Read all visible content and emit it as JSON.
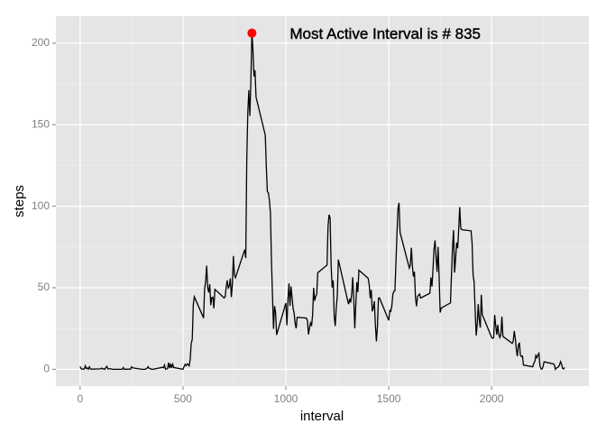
{
  "chart_data": {
    "type": "line",
    "xlabel": "interval",
    "ylabel": "steps",
    "annotation": "Most Active Interval is # 835",
    "highlight": {
      "x": 835,
      "y": 206.17,
      "color": "#ff0000"
    },
    "color": "#000000",
    "x": [
      0,
      5,
      10,
      15,
      20,
      25,
      30,
      35,
      40,
      45,
      50,
      55,
      100,
      105,
      110,
      115,
      120,
      125,
      130,
      135,
      140,
      145,
      150,
      155,
      200,
      205,
      210,
      215,
      220,
      225,
      230,
      235,
      240,
      245,
      250,
      255,
      300,
      305,
      310,
      315,
      320,
      325,
      330,
      335,
      340,
      345,
      350,
      355,
      400,
      405,
      410,
      415,
      420,
      425,
      430,
      435,
      440,
      445,
      450,
      455,
      500,
      505,
      510,
      515,
      520,
      525,
      530,
      535,
      540,
      545,
      550,
      555,
      600,
      605,
      610,
      615,
      620,
      625,
      630,
      635,
      640,
      645,
      650,
      655,
      700,
      705,
      710,
      715,
      720,
      725,
      730,
      735,
      740,
      745,
      750,
      755,
      800,
      805,
      810,
      815,
      820,
      825,
      830,
      835,
      840,
      845,
      850,
      855,
      900,
      905,
      910,
      915,
      920,
      925,
      930,
      935,
      940,
      945,
      950,
      955,
      1000,
      1005,
      1010,
      1015,
      1020,
      1025,
      1030,
      1035,
      1040,
      1045,
      1050,
      1055,
      1100,
      1105,
      1110,
      1115,
      1120,
      1125,
      1130,
      1135,
      1140,
      1145,
      1150,
      1155,
      1200,
      1205,
      1210,
      1215,
      1220,
      1225,
      1230,
      1235,
      1240,
      1245,
      1250,
      1255,
      1300,
      1305,
      1310,
      1315,
      1320,
      1325,
      1330,
      1335,
      1340,
      1345,
      1350,
      1355,
      1400,
      1405,
      1410,
      1415,
      1420,
      1425,
      1430,
      1435,
      1440,
      1445,
      1450,
      1455,
      1500,
      1505,
      1510,
      1515,
      1520,
      1525,
      1530,
      1535,
      1540,
      1545,
      1550,
      1555,
      1600,
      1605,
      1610,
      1615,
      1620,
      1625,
      1630,
      1635,
      1640,
      1645,
      1650,
      1655,
      1700,
      1705,
      1710,
      1715,
      1720,
      1725,
      1730,
      1735,
      1740,
      1745,
      1750,
      1755,
      1800,
      1805,
      1810,
      1815,
      1820,
      1825,
      1830,
      1835,
      1840,
      1845,
      1850,
      1855,
      1900,
      1905,
      1910,
      1915,
      1920,
      1925,
      1930,
      1935,
      1940,
      1945,
      1950,
      1955,
      2000,
      2005,
      2010,
      2015,
      2020,
      2025,
      2030,
      2035,
      2040,
      2045,
      2050,
      2055,
      2100,
      2105,
      2110,
      2115,
      2120,
      2125,
      2130,
      2135,
      2140,
      2145,
      2150,
      2155,
      2200,
      2205,
      2210,
      2215,
      2220,
      2225,
      2230,
      2235,
      2240,
      2245,
      2250,
      2255,
      2300,
      2305,
      2310,
      2315,
      2320,
      2325,
      2330,
      2335,
      2340,
      2345,
      2350,
      2355
    ],
    "values": [
      1.7,
      0.3,
      0.1,
      0.2,
      0.1,
      2.1,
      0.5,
      0.9,
      0,
      1.5,
      0.3,
      0.1,
      0.3,
      0.7,
      0.2,
      0.3,
      0,
      1.1,
      1.8,
      0.2,
      0.2,
      0.4,
      0.3,
      0,
      0,
      0,
      1.1,
      0,
      0,
      0.1,
      0,
      0.2,
      0,
      0,
      1.5,
      0.9,
      0,
      0,
      0,
      0,
      0.2,
      0.6,
      1.6,
      0.6,
      0.5,
      0.1,
      0,
      0,
      1.2,
      0.9,
      2.6,
      0,
      0.3,
      0.4,
      4.1,
      0.7,
      3.5,
      0.8,
      3.1,
      1.1,
      0,
      1.6,
      3.0,
      2.2,
      3.3,
      3.0,
      2.1,
      6.1,
      16.0,
      18.3,
      39.5,
      44.5,
      31.5,
      49.3,
      53.8,
      63.5,
      50.0,
      47.1,
      52.2,
      39.3,
      44.0,
      44.2,
      37.4,
      49.0,
      43.8,
      44.4,
      50.5,
      54.5,
      49.9,
      50.98,
      55.7,
      44.3,
      52.3,
      69.5,
      57.8,
      56.2,
      73.4,
      68.2,
      129.4,
      157.5,
      171.2,
      155.4,
      177.3,
      206.17,
      195.9,
      179.6,
      183.4,
      167.0,
      143.5,
      124.0,
      109.1,
      108.1,
      103.7,
      95.97,
      66.2,
      45.2,
      24.8,
      38.8,
      34.98,
      21.1,
      40.6,
      26.98,
      42.4,
      52.7,
      38.9,
      50.8,
      44.3,
      37.4,
      34.7,
      28.3,
      25.1,
      31.9,
      31.4,
      29.7,
      21.3,
      25.5,
      28.4,
      26.5,
      33.4,
      50.0,
      42.0,
      44.6,
      46.0,
      59.2,
      63.9,
      87.7,
      94.8,
      92.8,
      63.4,
      50.2,
      54.5,
      32.4,
      26.5,
      37.7,
      45.1,
      67.3,
      42.3,
      39.9,
      43.3,
      40.98,
      46.2,
      56.4,
      42.8,
      25.1,
      39.97,
      53.5,
      47.3,
      60.8,
      55.8,
      51.96,
      43.6,
      48.7,
      35.5,
      37.5,
      41.8,
      27.5,
      17.1,
      26.1,
      43.6,
      43.8,
      30.0,
      36.1,
      35.5,
      38.8,
      45.96,
      47.8,
      48.1,
      65.3,
      82.9,
      98.7,
      102.1,
      83.96,
      62.1,
      64.1,
      74.5,
      63.2,
      56.9,
      59.8,
      43.9,
      38.6,
      44.7,
      45.5,
      46.2,
      43.7,
      46.6,
      56.3,
      50.7,
      61.2,
      73.4,
      79.1,
      68.9,
      59.7,
      75.1,
      56.5,
      34.8,
      37.5,
      40.7,
      58.0,
      74.7,
      85.3,
      59.3,
      67.8,
      77.7,
      74.2,
      85.3,
      99.5,
      86.6,
      85.6,
      84.9,
      77.8,
      58.0,
      53.4,
      36.3,
      20.7,
      27.4,
      40.0,
      30.2,
      25.5,
      45.7,
      33.5,
      19.6,
      19.0,
      19.3,
      33.3,
      26.8,
      21.2,
      27.3,
      21.3,
      19.5,
      21.3,
      32.3,
      20.2,
      15.9,
      17.2,
      23.5,
      19.2,
      12.5,
      8.0,
      14.7,
      16.3,
      8.7,
      7.8,
      8.1,
      2.6,
      1.5,
      3.7,
      4.8,
      8.5,
      7.1,
      8.7,
      9.8,
      2.2,
      0.3,
      0.1,
      1.6,
      4.6,
      3.3,
      2.8,
      0,
      0.8,
      0.96,
      1.6,
      2.6,
      4.7,
      3.3,
      0.6,
      0.2,
      1.1
    ],
    "xlim": [
      -117.75,
      2472.75
    ],
    "ylim": [
      -10.3,
      216.5
    ],
    "xticks": [
      0,
      500,
      1000,
      1500,
      2000
    ],
    "yticks": [
      0,
      50,
      100,
      150,
      200
    ],
    "x_minor_ticks": [
      250,
      750,
      1250,
      1750,
      2250
    ],
    "y_minor_ticks": [
      25,
      75,
      125,
      175
    ],
    "grid": true
  }
}
